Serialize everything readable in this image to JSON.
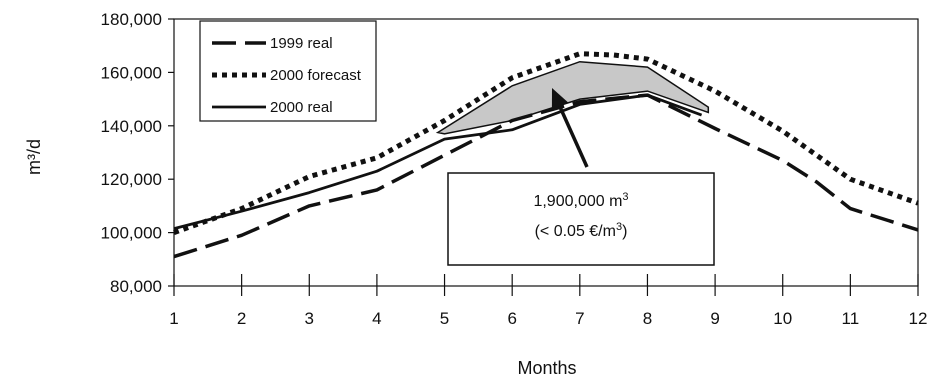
{
  "chart_data": {
    "type": "line",
    "title": "",
    "xlabel": "Months",
    "ylabel": "m³/d",
    "x": [
      1,
      2,
      3,
      4,
      5,
      6,
      7,
      8,
      9,
      10,
      11,
      12
    ],
    "xlim": [
      1,
      12
    ],
    "ylim": [
      80000,
      180000
    ],
    "y_ticks": [
      "80,000",
      "100,000",
      "120,000",
      "140,000",
      "160,000",
      "180,000"
    ],
    "y_tick_values": [
      80000,
      100000,
      120000,
      140000,
      160000,
      180000
    ],
    "x_ticks": [
      "1",
      "2",
      "3",
      "4",
      "5",
      "6",
      "7",
      "8",
      "9",
      "10",
      "11",
      "12"
    ],
    "grid": false,
    "legend_position": "top-left",
    "series": [
      {
        "name": "1999 real",
        "style": "dashed",
        "x": [
          1,
          2,
          3,
          4,
          5,
          6,
          7,
          8,
          9,
          10,
          10.5,
          11,
          12
        ],
        "values": [
          91000,
          99000,
          110000,
          116000,
          129000,
          142000,
          149000,
          151500,
          139000,
          127000,
          119000,
          109000,
          101000
        ]
      },
      {
        "name": "2000 forecast",
        "style": "dotted",
        "x": [
          1,
          2,
          3,
          4,
          5,
          6,
          7,
          7.5,
          8,
          9,
          10,
          11,
          12
        ],
        "values": [
          100000,
          109000,
          121000,
          128000,
          142000,
          158000,
          167000,
          166500,
          165000,
          153000,
          138000,
          120000,
          111000
        ]
      },
      {
        "name": "2000 real",
        "style": "solid",
        "x": [
          1,
          2,
          3,
          4,
          5,
          6,
          7,
          8,
          8.8
        ],
        "values": [
          101500,
          108000,
          115000,
          123000,
          135000,
          138500,
          148000,
          151500,
          144000
        ]
      }
    ],
    "shaded_region": {
      "x": [
        4.9,
        6,
        7,
        8,
        8.9,
        8.9,
        8,
        7,
        6,
        5
      ],
      "values": [
        137500,
        155000,
        164000,
        162000,
        147000,
        145000,
        153000,
        150000,
        142000,
        137000
      ]
    },
    "annotation": {
      "line1": "1,900,000 m",
      "line1_sup": "3",
      "line2_prefix": "(< 0.05 €/m",
      "line2_sup": "3",
      "line2_suffix": ")"
    }
  }
}
